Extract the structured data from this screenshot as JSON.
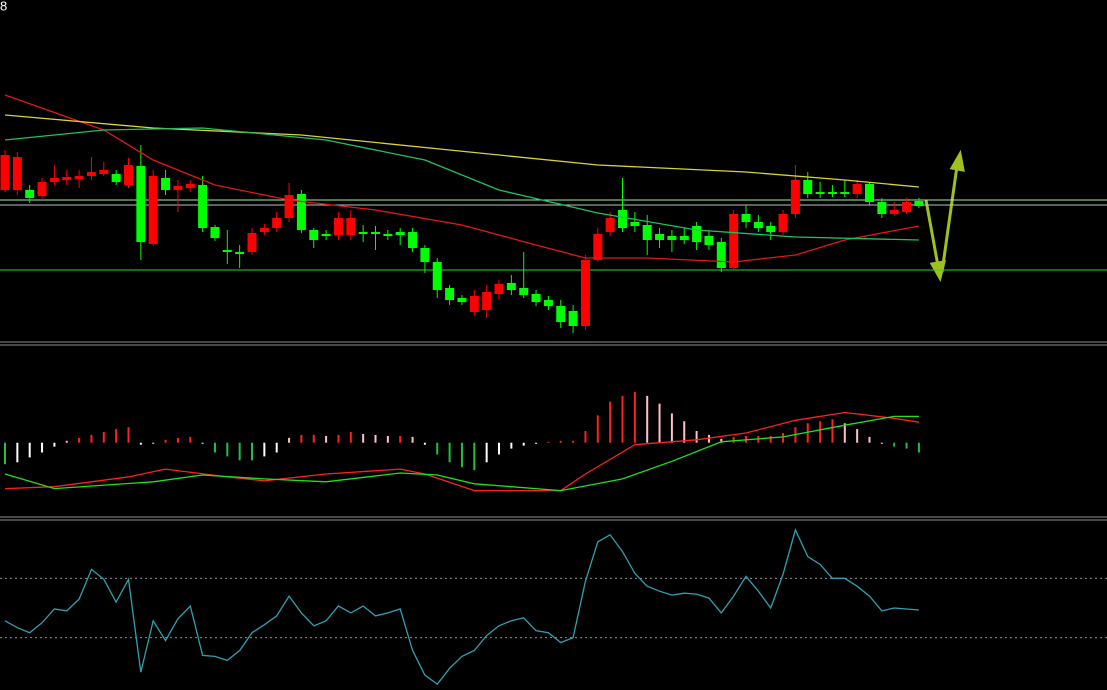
{
  "corner_label": "8",
  "chart_data": [
    {
      "type": "candlestick",
      "up_color": "#ff0000",
      "down_color": "#00ff00",
      "ylim": [
        0,
        340
      ],
      "ohlc": [
        [
          150,
          190,
          148,
          185
        ],
        [
          150,
          188,
          145,
          183
        ],
        [
          150,
          155,
          137,
          142
        ],
        [
          144,
          162,
          140,
          158
        ],
        [
          158,
          175,
          155,
          162
        ],
        [
          160,
          170,
          155,
          163
        ],
        [
          161,
          170,
          152,
          164
        ],
        [
          164,
          183,
          160,
          168
        ],
        [
          166,
          178,
          164,
          170
        ],
        [
          166,
          170,
          155,
          158
        ],
        [
          155,
          182,
          152,
          175
        ],
        [
          174,
          195,
          80,
          98
        ],
        [
          96,
          170,
          94,
          164
        ],
        [
          162,
          170,
          145,
          150
        ],
        [
          150,
          160,
          128,
          154
        ],
        [
          152,
          160,
          148,
          156
        ],
        [
          155,
          164,
          108,
          112
        ],
        [
          113,
          115,
          99,
          102
        ],
        [
          90,
          110,
          76,
          88
        ],
        [
          88,
          95,
          72,
          86
        ],
        [
          88,
          112,
          85,
          107
        ],
        [
          108,
          116,
          105,
          112
        ],
        [
          112,
          128,
          108,
          122
        ],
        [
          122,
          157,
          118,
          145
        ],
        [
          146,
          150,
          107,
          110
        ],
        [
          110,
          112,
          92,
          100
        ],
        [
          106,
          110,
          100,
          104
        ],
        [
          105,
          128,
          100,
          122
        ],
        [
          105,
          130,
          100,
          122
        ],
        [
          108,
          115,
          98,
          106
        ],
        [
          108,
          114,
          90,
          106
        ],
        [
          106,
          110,
          100,
          104
        ],
        [
          108,
          112,
          95,
          105
        ],
        [
          108,
          112,
          88,
          92
        ],
        [
          92,
          95,
          67,
          78
        ],
        [
          78,
          82,
          42,
          50
        ],
        [
          52,
          55,
          35,
          40
        ],
        [
          42,
          45,
          35,
          38
        ],
        [
          28,
          50,
          24,
          44
        ],
        [
          30,
          55,
          22,
          48
        ],
        [
          46,
          60,
          40,
          56
        ],
        [
          57,
          65,
          45,
          50
        ],
        [
          52,
          88,
          42,
          45
        ],
        [
          46,
          50,
          34,
          38
        ],
        [
          40,
          44,
          30,
          34
        ],
        [
          34,
          40,
          12,
          18
        ],
        [
          29,
          35,
          7,
          14
        ],
        [
          14,
          85,
          10,
          80
        ],
        [
          80,
          112,
          78,
          106
        ],
        [
          108,
          128,
          104,
          122
        ],
        [
          130,
          162,
          108,
          112
        ],
        [
          118,
          128,
          108,
          114
        ],
        [
          115,
          125,
          85,
          100
        ],
        [
          106,
          112,
          92,
          100
        ],
        [
          104,
          110,
          88,
          100
        ],
        [
          104,
          112,
          96,
          100
        ],
        [
          114,
          118,
          90,
          98
        ],
        [
          104,
          110,
          90,
          95
        ],
        [
          98,
          102,
          68,
          72
        ],
        [
          72,
          130,
          70,
          126
        ],
        [
          126,
          135,
          112,
          118
        ],
        [
          118,
          125,
          108,
          112
        ],
        [
          114,
          118,
          100,
          108
        ],
        [
          108,
          130,
          105,
          126
        ],
        [
          126,
          175,
          122,
          160
        ],
        [
          160,
          168,
          142,
          146
        ],
        [
          148,
          158,
          142,
          146
        ],
        [
          148,
          155,
          143,
          146
        ],
        [
          148,
          160,
          143,
          146
        ],
        [
          146,
          160,
          142,
          156
        ],
        [
          156,
          158,
          135,
          138
        ],
        [
          138,
          142,
          122,
          126
        ],
        [
          126,
          138,
          124,
          130
        ],
        [
          128,
          142,
          126,
          138
        ],
        [
          139,
          142,
          132,
          134
        ]
      ],
      "series": [
        {
          "color": "#e01818",
          "x": [
            0,
            8,
            12,
            17,
            23,
            30,
            37,
            43,
            47,
            52,
            59,
            64,
            68,
            74
          ],
          "values": [
            245,
            210,
            180,
            155,
            140,
            130,
            115,
            95,
            82,
            82,
            78,
            85,
            100,
            114
          ]
        },
        {
          "color": "#d8d040",
          "x": [
            0,
            12,
            24,
            36,
            48,
            60,
            68,
            74
          ],
          "values": [
            225,
            212,
            205,
            190,
            175,
            168,
            160,
            153
          ]
        },
        {
          "color": "#20c060",
          "x": [
            0,
            8,
            16,
            26,
            34,
            40,
            48,
            56,
            64,
            74
          ],
          "values": [
            200,
            210,
            212,
            200,
            180,
            150,
            127,
            110,
            103,
            100
          ]
        }
      ],
      "hlines": [
        {
          "value": 140,
          "color": "#a0f0a0"
        },
        {
          "value": 135,
          "color": "#c0c0c0"
        },
        {
          "value": 70,
          "color": "#20e020"
        }
      ]
    },
    {
      "type": "macd",
      "ylim": [
        -75,
        98
      ],
      "histogram": [
        -22,
        -20,
        -15,
        -10,
        -4,
        2,
        5,
        8,
        11,
        14,
        16,
        -2,
        -1,
        3,
        5,
        6,
        -1,
        -10,
        -14,
        -18,
        -18,
        -14,
        -10,
        5,
        8,
        8,
        7,
        8,
        11,
        9,
        8,
        7,
        7,
        6,
        -2,
        -12,
        -20,
        -25,
        -28,
        -20,
        -12,
        -6,
        -3,
        -1,
        1,
        2,
        2,
        12,
        28,
        42,
        48,
        52,
        48,
        40,
        30,
        22,
        12,
        8,
        4,
        6,
        7,
        7,
        7,
        10,
        16,
        20,
        22,
        24,
        20,
        14,
        6,
        -1,
        -4,
        -6,
        -10
      ],
      "series": [
        {
          "color": "#ff2020",
          "x": [
            0,
            4,
            10,
            13,
            18,
            21,
            26,
            32,
            34,
            38,
            45,
            47,
            51,
            56,
            60,
            64,
            68,
            72,
            74
          ],
          "values": [
            -47,
            -45,
            -35,
            -27,
            -35,
            -39,
            -32,
            -27,
            -32,
            -49,
            -49,
            -32,
            -2,
            3,
            10,
            23,
            31,
            25,
            21
          ]
        },
        {
          "color": "#20e020",
          "x": [
            0,
            4,
            12,
            16,
            21,
            26,
            32,
            35,
            38,
            45,
            50,
            54,
            58,
            63,
            68,
            72,
            74
          ],
          "values": [
            -32,
            -47,
            -40,
            -33,
            -37,
            -40,
            -31,
            -33,
            -42,
            -49,
            -37,
            -19,
            1,
            6,
            18,
            27,
            27
          ]
        }
      ]
    },
    {
      "type": "line",
      "ylim": [
        0,
        170
      ],
      "color": "#30a0b0",
      "values": [
        70,
        63,
        58,
        68,
        82,
        80,
        92,
        122,
        112,
        89,
        112,
        18,
        70,
        50,
        72,
        85,
        35,
        34,
        30,
        40,
        58,
        66,
        75,
        95,
        78,
        65,
        70,
        85,
        78,
        85,
        75,
        78,
        82,
        40,
        15,
        6,
        22,
        34,
        40,
        55,
        65,
        70,
        73,
        60,
        58,
        48,
        53,
        110,
        150,
        157,
        140,
        118,
        105,
        100,
        96,
        98,
        97,
        93,
        78,
        95,
        115,
        100,
        83,
        117,
        162,
        135,
        127,
        113,
        113,
        105,
        95,
        80,
        83,
        82,
        81
      ],
      "hlines": [
        {
          "value": 113,
          "color": "#909090"
        },
        {
          "value": 53,
          "color": "#909090"
        }
      ]
    }
  ]
}
